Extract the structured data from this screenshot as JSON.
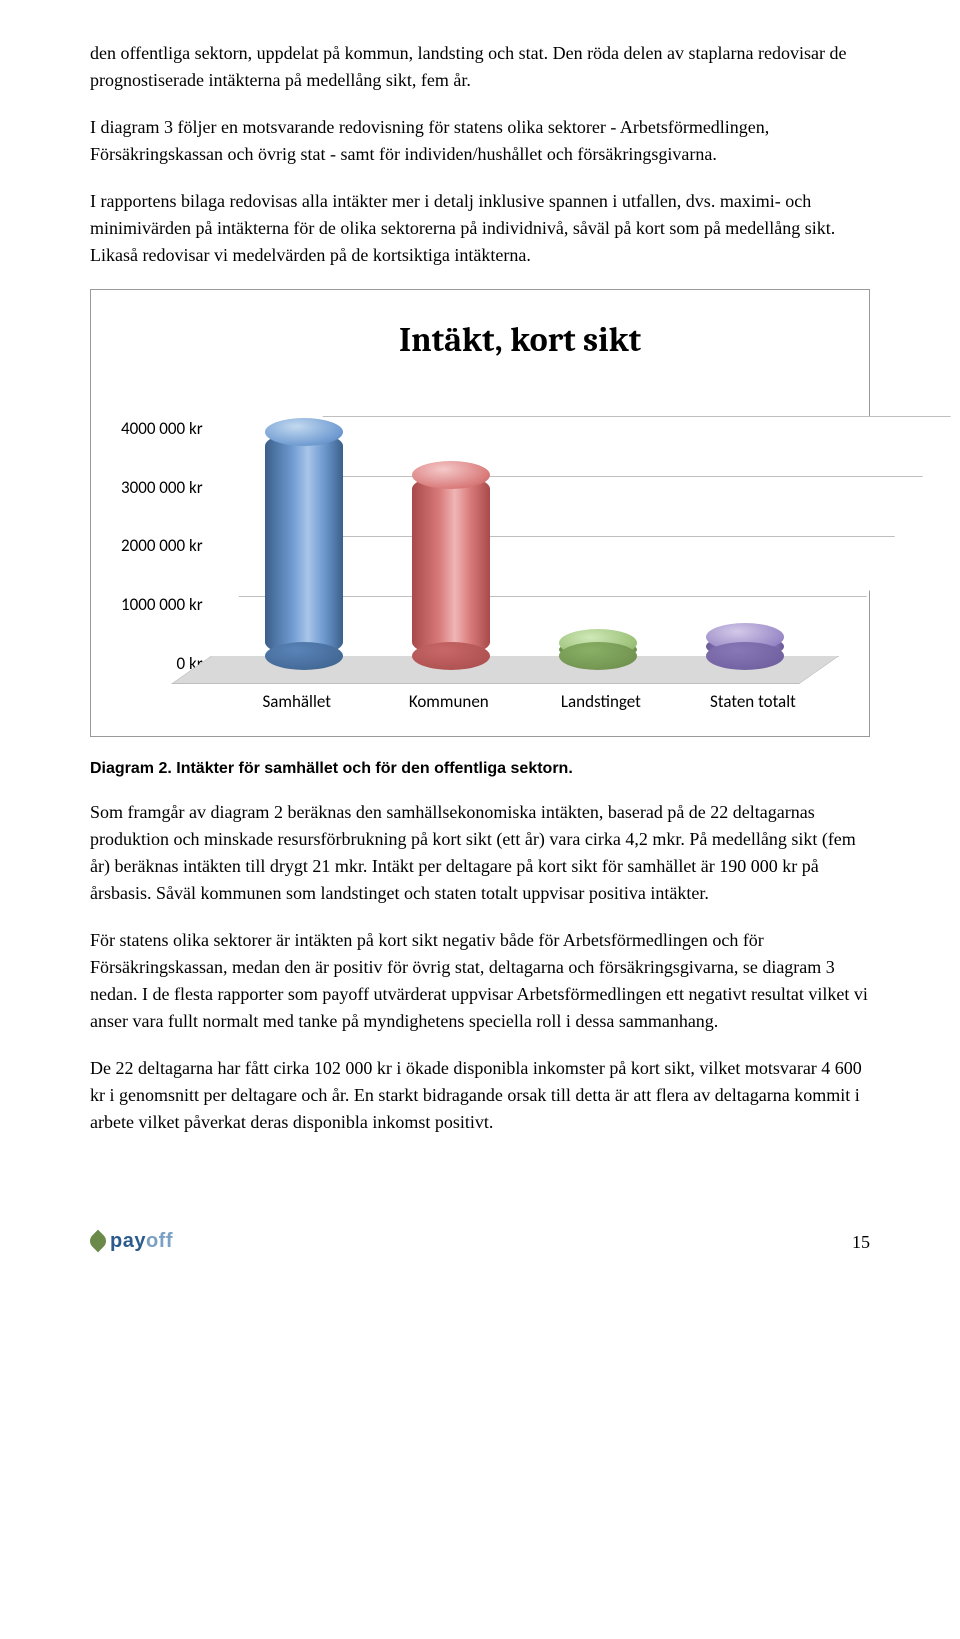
{
  "paragraphs": {
    "p1": "den offentliga sektorn, uppdelat på kommun, landsting och stat. Den röda delen av staplarna redovisar de prognostiserade intäkterna på medellång sikt, fem år.",
    "p2": "I diagram 3 följer en motsvarande redovisning för statens olika sektorer - Arbetsförmedlingen, Försäkringskassan och övrig stat - samt för individen/hushållet och försäkringsgivarna.",
    "p3": "I rapportens bilaga redovisas alla intäkter mer i detalj inklusive spannen i utfallen, dvs. maximi- och minimivärden på intäkterna för de olika sektorerna på individnivå, såväl på kort som på medellång sikt. Likaså redovisar vi medelvärden på de kortsiktiga intäkterna.",
    "p4": "Som framgår av diagram 2 beräknas den samhällsekonomiska intäkten, baserad på de 22 deltagarnas produktion och minskade resursförbrukning på kort sikt (ett år) vara cirka 4,2 mkr. På medellång sikt (fem år) beräknas intäkten till drygt 21 mkr. Intäkt per deltagare på kort sikt för samhället är 190 000 kr på årsbasis. Såväl kommunen som landstinget och staten totalt uppvisar positiva intäkter.",
    "p5": "För statens olika sektorer är intäkten på kort sikt negativ både för Arbetsförmedlingen och för Försäkringskassan, medan den är positiv för övrig stat, deltagarna och försäkringsgivarna, se diagram 3 nedan. I de flesta rapporter som payoff utvärderat uppvisar Arbetsförmedlingen ett negativt resultat vilket vi anser vara fullt normalt med tanke på myndighetens speciella roll i dessa sammanhang.",
    "p6": "De 22 deltagarna har fått cirka 102 000 kr i ökade disponibla inkomster på kort sikt, vilket motsvarar 4 600 kr i genomsnitt per deltagare och år. En starkt bidragande orsak till detta är att flera av deltagarna kommit i arbete vilket påverkat deras disponibla inkomst positivt."
  },
  "chart": {
    "title": "Intäkt, kort sikt",
    "type": "3d-cylinder-bar",
    "y_ticks": [
      "4000 000 kr",
      "3000 000 kr",
      "2000 000 kr",
      "1000 000 kr",
      "0 kr"
    ],
    "y_max": 4500000,
    "categories": [
      "Samhället",
      "Kommunen",
      "Landstinget",
      "Staten totalt"
    ],
    "values": [
      4200000,
      3400000,
      250000,
      350000
    ],
    "bar_colors": [
      "#6f9bd1",
      "#d97a7a",
      "#9bc178",
      "#9a8ac8"
    ],
    "grid_color": "#bfbfbf",
    "floor_color": "#d9d9d9",
    "background_color": "#ffffff",
    "title_fontsize": 34,
    "label_fontsize": 17
  },
  "caption": "Diagram 2. Intäkter för samhället och för den offentliga sektorn.",
  "footer": {
    "logo_text_1": "pay",
    "logo_text_2": "off",
    "page_number": "15"
  }
}
